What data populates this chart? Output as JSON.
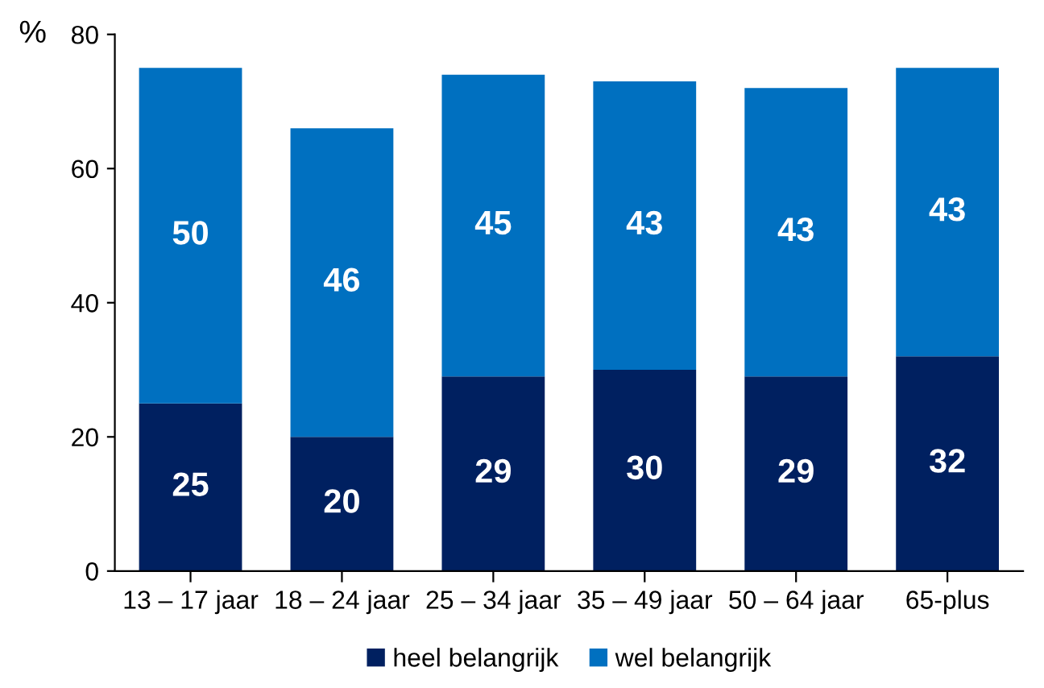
{
  "chart_data": {
    "type": "bar",
    "stacked": true,
    "ylabel": "%",
    "categories": [
      "13 – 17 jaar",
      "18 – 24 jaar",
      "25 – 34 jaar",
      "35 – 49 jaar",
      "50 – 64 jaar",
      "65-plus"
    ],
    "series": [
      {
        "name": "heel belangrijk",
        "color": "#002060",
        "values": [
          25,
          20,
          29,
          30,
          29,
          32
        ]
      },
      {
        "name": "wel belangrijk",
        "color": "#0070c0",
        "values": [
          50,
          46,
          45,
          43,
          43,
          43
        ]
      }
    ],
    "ylim": [
      0,
      80
    ],
    "yticks": [
      0,
      20,
      40,
      60,
      80
    ],
    "grid": false,
    "legend": "bottom",
    "data_labels": true
  }
}
